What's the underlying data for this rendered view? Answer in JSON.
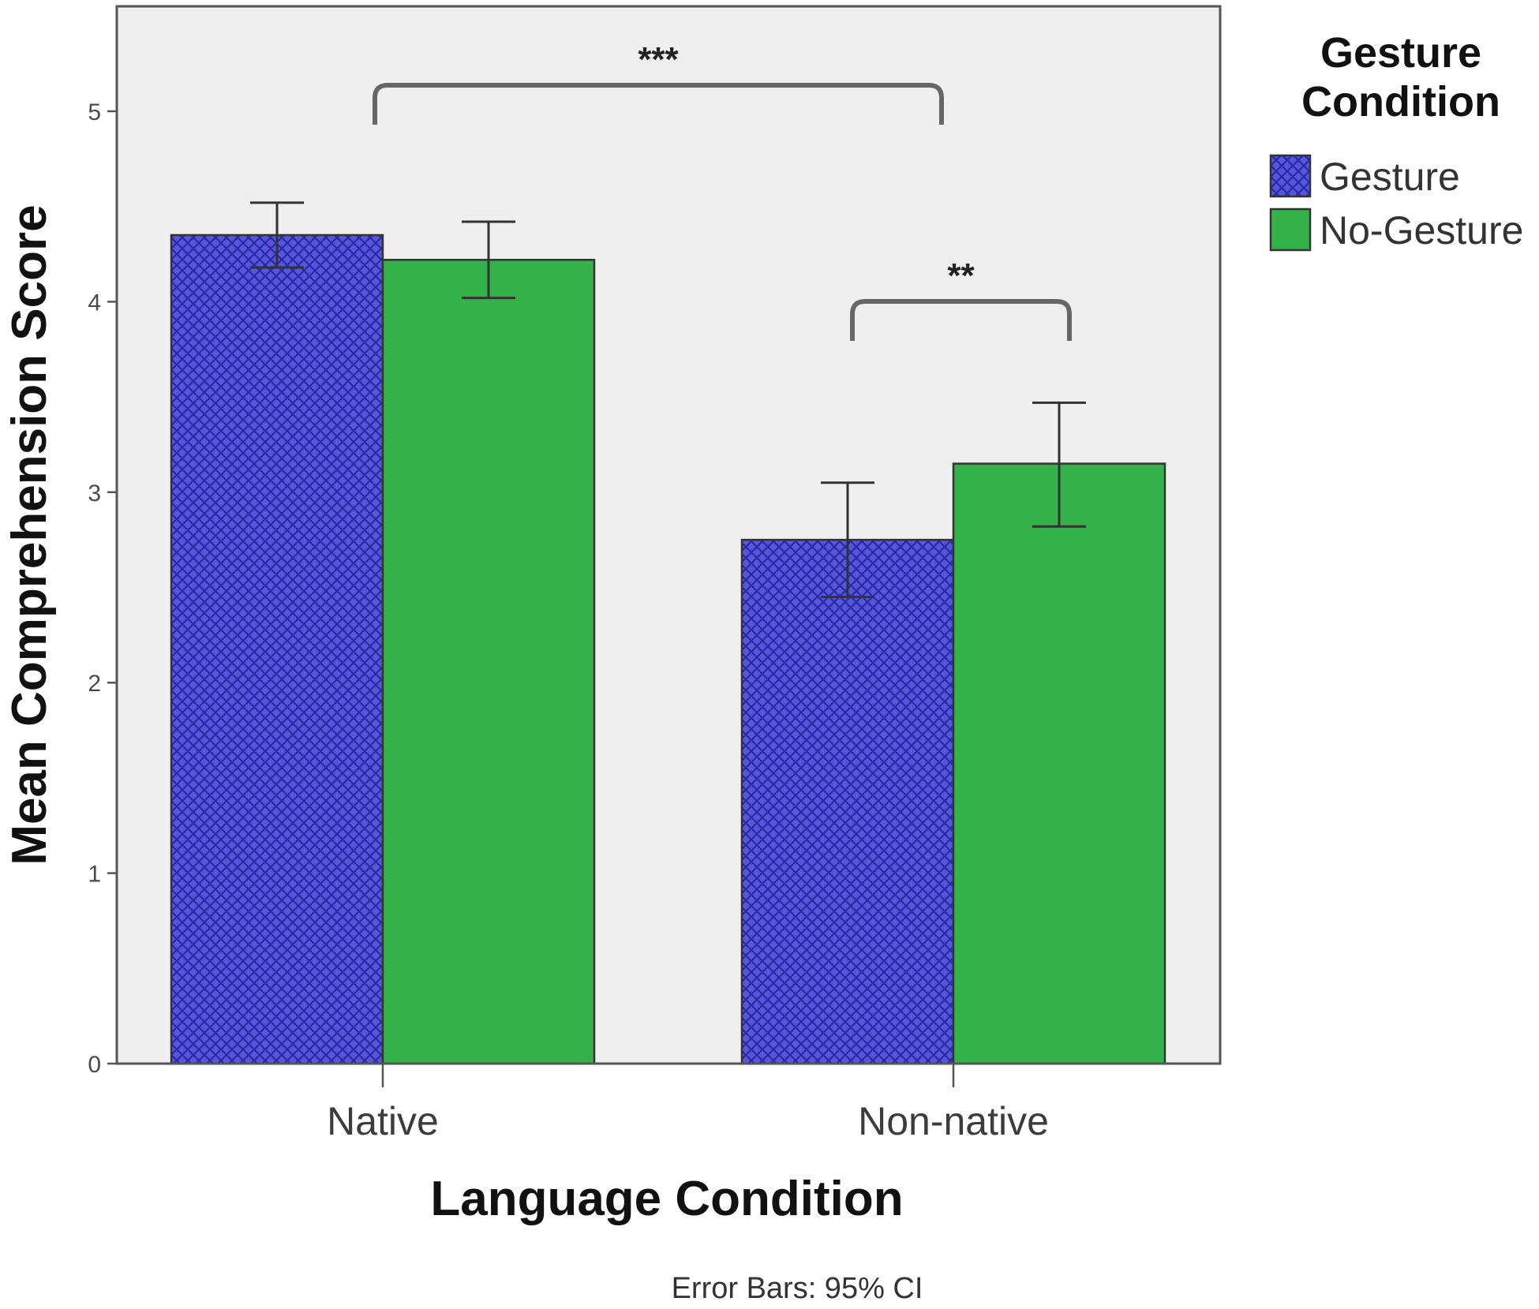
{
  "chart_data": {
    "type": "bar",
    "title": "",
    "xlabel": "Language Condition",
    "ylabel": "Mean Comprehension Score",
    "ylim": [
      0,
      5.5
    ],
    "yticks": [
      0,
      1,
      2,
      3,
      4,
      5
    ],
    "categories": [
      "Native",
      "Non-native"
    ],
    "series": [
      {
        "name": "Gesture",
        "values": [
          4.35,
          2.75
        ],
        "ci_low": [
          4.18,
          2.45
        ],
        "ci_high": [
          4.52,
          3.05
        ]
      },
      {
        "name": "No-Gesture",
        "values": [
          4.22,
          3.15
        ],
        "ci_low": [
          4.02,
          2.82
        ],
        "ci_high": [
          4.42,
          3.47
        ]
      }
    ],
    "legend": {
      "title": "Gesture Condition",
      "title_lines": [
        "Gesture",
        "Condition"
      ],
      "position": "right"
    },
    "annotations": [
      {
        "text": "***",
        "from": "Native",
        "to": "Non-native",
        "level": 5.1
      },
      {
        "text": "**",
        "from": "Non-native Gesture",
        "to": "Non-native No-Gesture",
        "level": 4.0
      }
    ],
    "note": "Error Bars: 95% CI",
    "grid": false
  },
  "colors": {
    "gesture": "#5555dd",
    "gesture_pattern": "#2a2aa0",
    "no_gesture": "#33b24a",
    "plot_background": "#efefef"
  }
}
